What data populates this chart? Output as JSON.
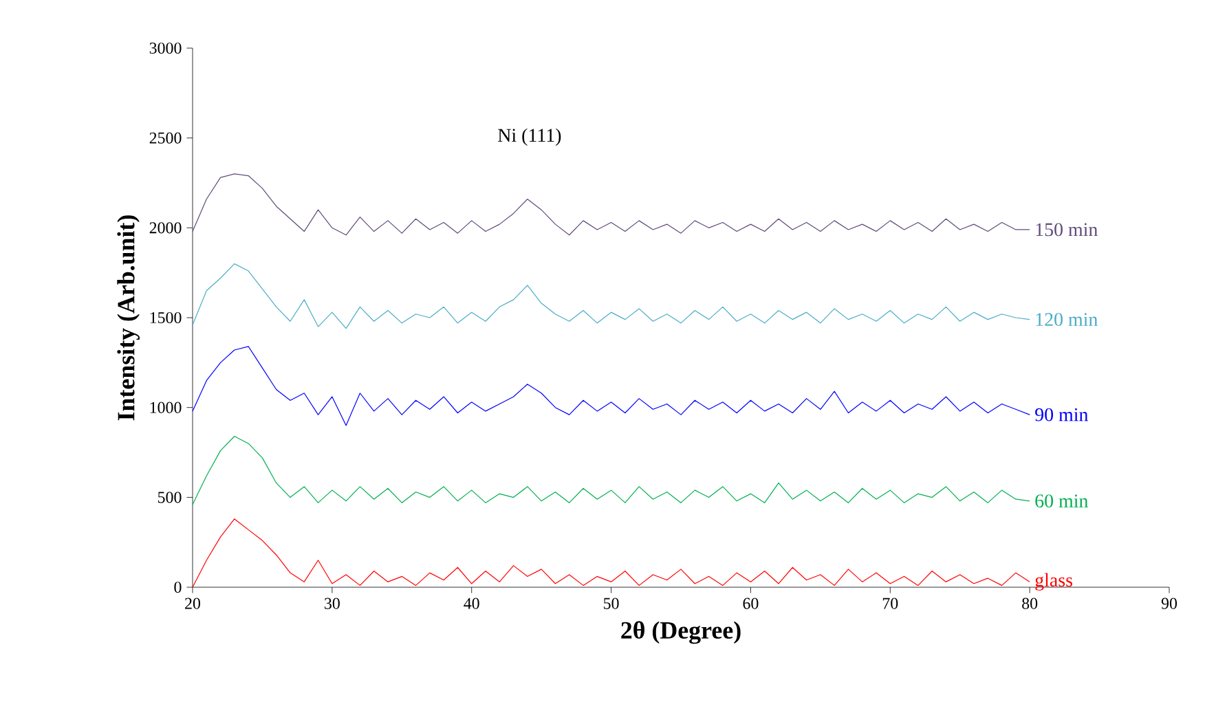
{
  "chart_data": {
    "type": "line",
    "xlabel": "2θ (Degree)",
    "ylabel": "Intensity (Arb.unit)",
    "xlim": [
      20,
      90
    ],
    "ylim": [
      0,
      3000
    ],
    "xticks": [
      20,
      30,
      40,
      50,
      60,
      70,
      80,
      90
    ],
    "yticks": [
      0,
      500,
      1000,
      1500,
      2000,
      2500,
      3000
    ],
    "marker": "none",
    "line_style": "solid",
    "x": [
      20,
      21,
      22,
      23,
      24,
      25,
      26,
      27,
      28,
      29,
      30,
      31,
      32,
      33,
      34,
      35,
      36,
      37,
      38,
      39,
      40,
      41,
      42,
      43,
      44,
      45,
      46,
      47,
      48,
      49,
      50,
      51,
      52,
      53,
      54,
      55,
      56,
      57,
      58,
      59,
      60,
      61,
      62,
      63,
      64,
      65,
      66,
      67,
      68,
      69,
      70,
      71,
      72,
      73,
      74,
      75,
      76,
      77,
      78,
      79,
      80
    ],
    "annotations": [
      "Ni (111)"
    ],
    "series": [
      {
        "name": "glass",
        "color": "#ff0000",
        "values": [
          0,
          150,
          280,
          380,
          320,
          260,
          180,
          80,
          30,
          150,
          20,
          70,
          10,
          90,
          30,
          60,
          10,
          80,
          40,
          110,
          20,
          90,
          30,
          120,
          60,
          100,
          20,
          70,
          10,
          60,
          30,
          90,
          10,
          70,
          40,
          100,
          20,
          60,
          10,
          80,
          30,
          90,
          20,
          110,
          40,
          70,
          10,
          100,
          30,
          80,
          20,
          60,
          10,
          90,
          30,
          70,
          20,
          50,
          10,
          80,
          30
        ]
      },
      {
        "name": "60 min",
        "color": "#00b050",
        "values": [
          460,
          620,
          760,
          840,
          800,
          720,
          580,
          500,
          560,
          470,
          540,
          480,
          560,
          490,
          550,
          470,
          530,
          500,
          560,
          480,
          540,
          470,
          520,
          500,
          560,
          480,
          530,
          470,
          550,
          490,
          540,
          470,
          560,
          490,
          530,
          470,
          540,
          500,
          560,
          480,
          520,
          470,
          580,
          490,
          540,
          480,
          530,
          470,
          550,
          490,
          540,
          470,
          520,
          500,
          560,
          480,
          530,
          470,
          540,
          490,
          480
        ]
      },
      {
        "name": "90 min",
        "color": "#0000ff",
        "values": [
          980,
          1150,
          1250,
          1320,
          1340,
          1220,
          1100,
          1040,
          1080,
          960,
          1060,
          900,
          1080,
          980,
          1050,
          960,
          1040,
          990,
          1060,
          970,
          1030,
          980,
          1020,
          1060,
          1130,
          1080,
          1000,
          960,
          1040,
          980,
          1030,
          970,
          1050,
          990,
          1020,
          960,
          1040,
          990,
          1030,
          970,
          1040,
          980,
          1020,
          970,
          1050,
          990,
          1090,
          970,
          1030,
          980,
          1040,
          970,
          1020,
          990,
          1060,
          980,
          1030,
          970,
          1020,
          990,
          960
        ]
      },
      {
        "name": "120 min",
        "color": "#4bacc6",
        "values": [
          1460,
          1650,
          1720,
          1800,
          1760,
          1660,
          1560,
          1480,
          1600,
          1450,
          1530,
          1440,
          1560,
          1480,
          1540,
          1470,
          1520,
          1500,
          1560,
          1470,
          1530,
          1480,
          1560,
          1600,
          1680,
          1580,
          1520,
          1480,
          1540,
          1470,
          1530,
          1490,
          1550,
          1480,
          1520,
          1470,
          1540,
          1490,
          1560,
          1480,
          1520,
          1470,
          1540,
          1490,
          1530,
          1470,
          1550,
          1490,
          1520,
          1480,
          1540,
          1470,
          1520,
          1490,
          1560,
          1480,
          1530,
          1490,
          1520,
          1500,
          1490
        ]
      },
      {
        "name": "150 min",
        "color": "#604a7b",
        "values": [
          1980,
          2160,
          2280,
          2300,
          2290,
          2220,
          2120,
          2050,
          1980,
          2100,
          2000,
          1960,
          2060,
          1980,
          2040,
          1970,
          2050,
          1990,
          2030,
          1970,
          2040,
          1980,
          2020,
          2080,
          2160,
          2100,
          2020,
          1960,
          2040,
          1990,
          2030,
          1980,
          2040,
          1990,
          2020,
          1970,
          2040,
          2000,
          2030,
          1980,
          2020,
          1980,
          2050,
          1990,
          2030,
          1980,
          2040,
          1990,
          2020,
          1980,
          2040,
          1990,
          2030,
          1980,
          2050,
          1990,
          2020,
          1980,
          2030,
          1990,
          1990
        ]
      }
    ]
  }
}
